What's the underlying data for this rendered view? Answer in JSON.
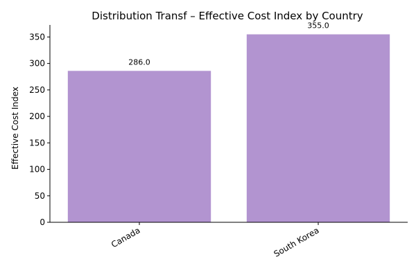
{
  "chart_data": {
    "type": "bar",
    "title": "Distribution Transf – Effective Cost Index by Country",
    "xlabel": "",
    "ylabel": "Effective Cost Index",
    "categories": [
      "Canada",
      "South Korea"
    ],
    "values": [
      286.0,
      355.0
    ],
    "data_labels": [
      "286.0",
      "355.0"
    ],
    "ylim": [
      0,
      372.75
    ],
    "yticks": [
      0,
      50,
      100,
      150,
      200,
      250,
      300,
      350
    ],
    "grid": false,
    "bar_color": "#b294d0"
  }
}
